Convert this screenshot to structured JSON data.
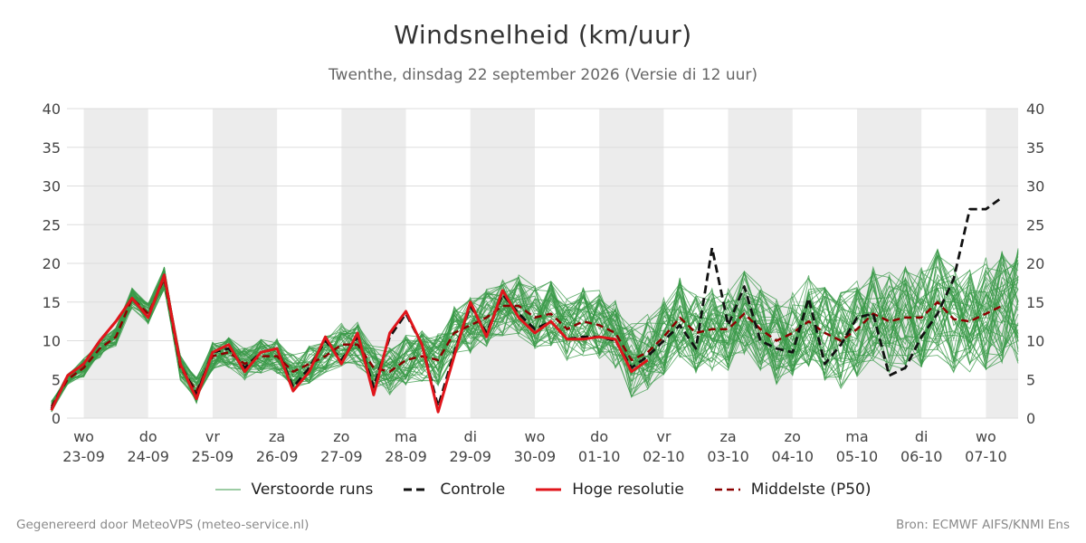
{
  "title": "Windsnelheid (km/uur)",
  "subtitle": "Twenthe, dinsdag 22 september 2026 (Versie di 12 uur)",
  "footer": {
    "left": "Gegenereerd door MeteoVPS (meteo-service.nl)",
    "right": "Bron: ECMWF AIFS/KNMI Ens"
  },
  "legend": [
    {
      "label": "Verstoorde runs",
      "color": "#3a9a48",
      "style": "thin"
    },
    {
      "label": "Controle",
      "color": "#111111",
      "style": "dashed"
    },
    {
      "label": "Hoge resolutie",
      "color": "#e0151b",
      "style": "solid"
    },
    {
      "label": "Middelste (P50)",
      "color": "#8b0000",
      "style": "dashed"
    }
  ],
  "colors": {
    "weekend_band": "#ececec",
    "grid": "#dddddd",
    "ensemble": "#3a9a48",
    "control": "#111111",
    "hires": "#e0151b",
    "median": "#8b0000"
  },
  "chart_data": {
    "type": "line",
    "title": "Windsnelheid (km/uur)",
    "subtitle": "Twenthe, dinsdag 22 september 2026 (Versie di 12 uur)",
    "ylim": [
      0,
      40
    ],
    "yticks": [
      0,
      5,
      10,
      15,
      20,
      25,
      30,
      35,
      40
    ],
    "x_unit": "days after 2026-09-22 00:00",
    "xlim": [
      0.74,
      15.5
    ],
    "x_ticks": [
      {
        "x": 1,
        "day": "wo",
        "date": "23-09"
      },
      {
        "x": 2,
        "day": "do",
        "date": "24-09"
      },
      {
        "x": 3,
        "day": "vr",
        "date": "25-09"
      },
      {
        "x": 4,
        "day": "za",
        "date": "26-09"
      },
      {
        "x": 5,
        "day": "zo",
        "date": "27-09"
      },
      {
        "x": 6,
        "day": "ma",
        "date": "28-09"
      },
      {
        "x": 7,
        "day": "di",
        "date": "29-09"
      },
      {
        "x": 8,
        "day": "wo",
        "date": "30-09"
      },
      {
        "x": 9,
        "day": "do",
        "date": "01-10"
      },
      {
        "x": 10,
        "day": "vr",
        "date": "02-10"
      },
      {
        "x": 11,
        "day": "za",
        "date": "03-10"
      },
      {
        "x": 12,
        "day": "zo",
        "date": "04-10"
      },
      {
        "x": 13,
        "day": "ma",
        "date": "05-10"
      },
      {
        "x": 14,
        "day": "di",
        "date": "06-10"
      },
      {
        "x": 15,
        "day": "wo",
        "date": "07-10"
      }
    ],
    "weekend_bands": [
      [
        1,
        2
      ],
      [
        3,
        4
      ],
      [
        5,
        6
      ],
      [
        7,
        8
      ],
      [
        9,
        10
      ],
      [
        11,
        12
      ],
      [
        13,
        14
      ],
      [
        15,
        15.5
      ]
    ],
    "series": [
      {
        "name": "Hoge resolutie",
        "style": "solid",
        "points": [
          [
            0.5,
            1
          ],
          [
            0.75,
            5.5
          ],
          [
            1,
            7
          ],
          [
            1.25,
            10
          ],
          [
            1.5,
            12.5
          ],
          [
            1.75,
            15.5
          ],
          [
            2,
            13
          ],
          [
            2.25,
            18.5
          ],
          [
            2.5,
            7
          ],
          [
            2.75,
            2.5
          ],
          [
            3,
            8.5
          ],
          [
            3.25,
            9.5
          ],
          [
            3.5,
            6
          ],
          [
            3.75,
            8.5
          ],
          [
            4,
            9
          ],
          [
            4.25,
            3.5
          ],
          [
            4.5,
            6
          ],
          [
            4.75,
            10.5
          ],
          [
            5,
            7
          ],
          [
            5.25,
            11
          ],
          [
            5.5,
            3
          ],
          [
            5.75,
            11
          ],
          [
            6,
            13.8
          ],
          [
            6.25,
            9.5
          ],
          [
            6.5,
            0.8
          ],
          [
            6.75,
            8
          ],
          [
            7,
            15
          ],
          [
            7.25,
            10.5
          ],
          [
            7.5,
            16.5
          ],
          [
            7.75,
            13
          ],
          [
            8,
            11
          ],
          [
            8.25,
            12.5
          ],
          [
            8.5,
            10.2
          ],
          [
            8.75,
            10.2
          ],
          [
            9,
            10.5
          ],
          [
            9.25,
            10.2
          ],
          [
            9.5,
            6
          ],
          [
            9.75,
            7.5
          ]
        ]
      },
      {
        "name": "Middelste (P50)",
        "style": "dashed",
        "points": [
          [
            0.5,
            1.5
          ],
          [
            0.75,
            5
          ],
          [
            1,
            6.5
          ],
          [
            1.25,
            9
          ],
          [
            1.5,
            10.5
          ],
          [
            1.75,
            15.5
          ],
          [
            2,
            13.5
          ],
          [
            2.25,
            18
          ],
          [
            2.5,
            6.5
          ],
          [
            2.75,
            3.5
          ],
          [
            3,
            8
          ],
          [
            3.25,
            8.5
          ],
          [
            3.5,
            7
          ],
          [
            3.75,
            8
          ],
          [
            4,
            8
          ],
          [
            4.25,
            6
          ],
          [
            4.5,
            7
          ],
          [
            4.75,
            8
          ],
          [
            5,
            9.5
          ],
          [
            5.25,
            9.5
          ],
          [
            5.5,
            6.5
          ],
          [
            5.75,
            6
          ],
          [
            6,
            7.5
          ],
          [
            6.25,
            8
          ],
          [
            6.5,
            7.5
          ],
          [
            6.75,
            11
          ],
          [
            7,
            12
          ],
          [
            7.25,
            13
          ],
          [
            7.5,
            14.5
          ],
          [
            7.75,
            14.5
          ],
          [
            8,
            13
          ],
          [
            8.25,
            13.5
          ],
          [
            8.5,
            11.5
          ],
          [
            8.75,
            12.5
          ],
          [
            9,
            12
          ],
          [
            9.25,
            11
          ],
          [
            9.5,
            7.5
          ],
          [
            9.75,
            8.5
          ],
          [
            10,
            10.5
          ],
          [
            10.25,
            13
          ],
          [
            10.5,
            11
          ],
          [
            10.75,
            11.5
          ],
          [
            11,
            11.5
          ],
          [
            11.25,
            13.5
          ],
          [
            11.5,
            11.5
          ],
          [
            11.75,
            10
          ],
          [
            12,
            11
          ],
          [
            12.25,
            12.5
          ],
          [
            12.5,
            11
          ],
          [
            12.75,
            10
          ],
          [
            13,
            11.5
          ],
          [
            13.25,
            13.5
          ],
          [
            13.5,
            12.5
          ],
          [
            13.75,
            13
          ],
          [
            14,
            13
          ],
          [
            14.25,
            15
          ],
          [
            14.5,
            12.8
          ],
          [
            14.75,
            12.5
          ],
          [
            15,
            13.5
          ],
          [
            15.25,
            14.5
          ]
        ]
      },
      {
        "name": "Controle",
        "style": "dashed",
        "points": [
          [
            0.5,
            1.2
          ],
          [
            0.75,
            5.5
          ],
          [
            1,
            7
          ],
          [
            1.25,
            10
          ],
          [
            1.5,
            12.5
          ],
          [
            1.75,
            15.5
          ],
          [
            2,
            13
          ],
          [
            2.25,
            18.5
          ],
          [
            2.5,
            7
          ],
          [
            2.75,
            3
          ],
          [
            3,
            8.5
          ],
          [
            3.25,
            9
          ],
          [
            3.5,
            6.5
          ],
          [
            3.75,
            8.5
          ],
          [
            4,
            9
          ],
          [
            4.25,
            4
          ],
          [
            4.5,
            6.5
          ],
          [
            4.75,
            10
          ],
          [
            5,
            7.5
          ],
          [
            5.25,
            10.5
          ],
          [
            5.5,
            4
          ],
          [
            5.75,
            10.5
          ],
          [
            6,
            13.5
          ],
          [
            6.25,
            9.5
          ],
          [
            6.5,
            1.5
          ],
          [
            6.75,
            8.5
          ],
          [
            7,
            14.5
          ],
          [
            7.25,
            11
          ],
          [
            7.5,
            16
          ],
          [
            7.75,
            13.5
          ],
          [
            8,
            11.5
          ],
          [
            8.25,
            12.5
          ],
          [
            8.5,
            10.2
          ],
          [
            8.75,
            10.5
          ],
          [
            9,
            10.5
          ],
          [
            9.25,
            10
          ],
          [
            9.5,
            6.5
          ],
          [
            9.75,
            8
          ],
          [
            10,
            10
          ],
          [
            10.25,
            12
          ],
          [
            10.5,
            9
          ],
          [
            10.75,
            22
          ],
          [
            11,
            12
          ],
          [
            11.25,
            17
          ],
          [
            11.5,
            10
          ],
          [
            11.75,
            9
          ],
          [
            12,
            8.5
          ],
          [
            12.25,
            15.5
          ],
          [
            12.5,
            7
          ],
          [
            12.75,
            9.5
          ],
          [
            13,
            13
          ],
          [
            13.25,
            13.5
          ],
          [
            13.5,
            5.5
          ],
          [
            13.75,
            6.5
          ],
          [
            14,
            10.5
          ],
          [
            14.25,
            13.5
          ],
          [
            14.5,
            18
          ],
          [
            14.75,
            27
          ],
          [
            15,
            27
          ],
          [
            15.25,
            28.5
          ]
        ]
      }
    ],
    "ensemble_series": {
      "name": "Verstoorde runs",
      "member_count": 50,
      "x_step": 0.25,
      "x_start": 0.5,
      "x_end": 15.5
    }
  }
}
